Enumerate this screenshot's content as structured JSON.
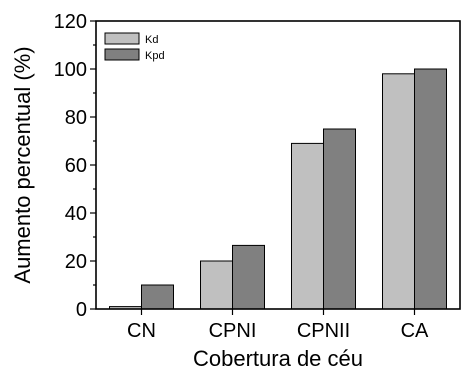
{
  "chart_data": {
    "type": "bar",
    "categories": [
      "CN",
      "CPNI",
      "CPNII",
      "CA"
    ],
    "series": [
      {
        "name": "Kd",
        "values": [
          1,
          20,
          69,
          98
        ],
        "color": "#c0c0c0"
      },
      {
        "name": "Kpd",
        "values": [
          10,
          26.5,
          75,
          100
        ],
        "color": "#808080"
      }
    ],
    "title": "",
    "xlabel": "Cobertura de céu",
    "ylabel": "Aumento percentual (%)",
    "ylim": [
      0,
      120
    ],
    "yticks": [
      "0",
      "20",
      "40",
      "60",
      "80",
      "100",
      "120"
    ],
    "grid": false,
    "legend_position": "top-left"
  }
}
